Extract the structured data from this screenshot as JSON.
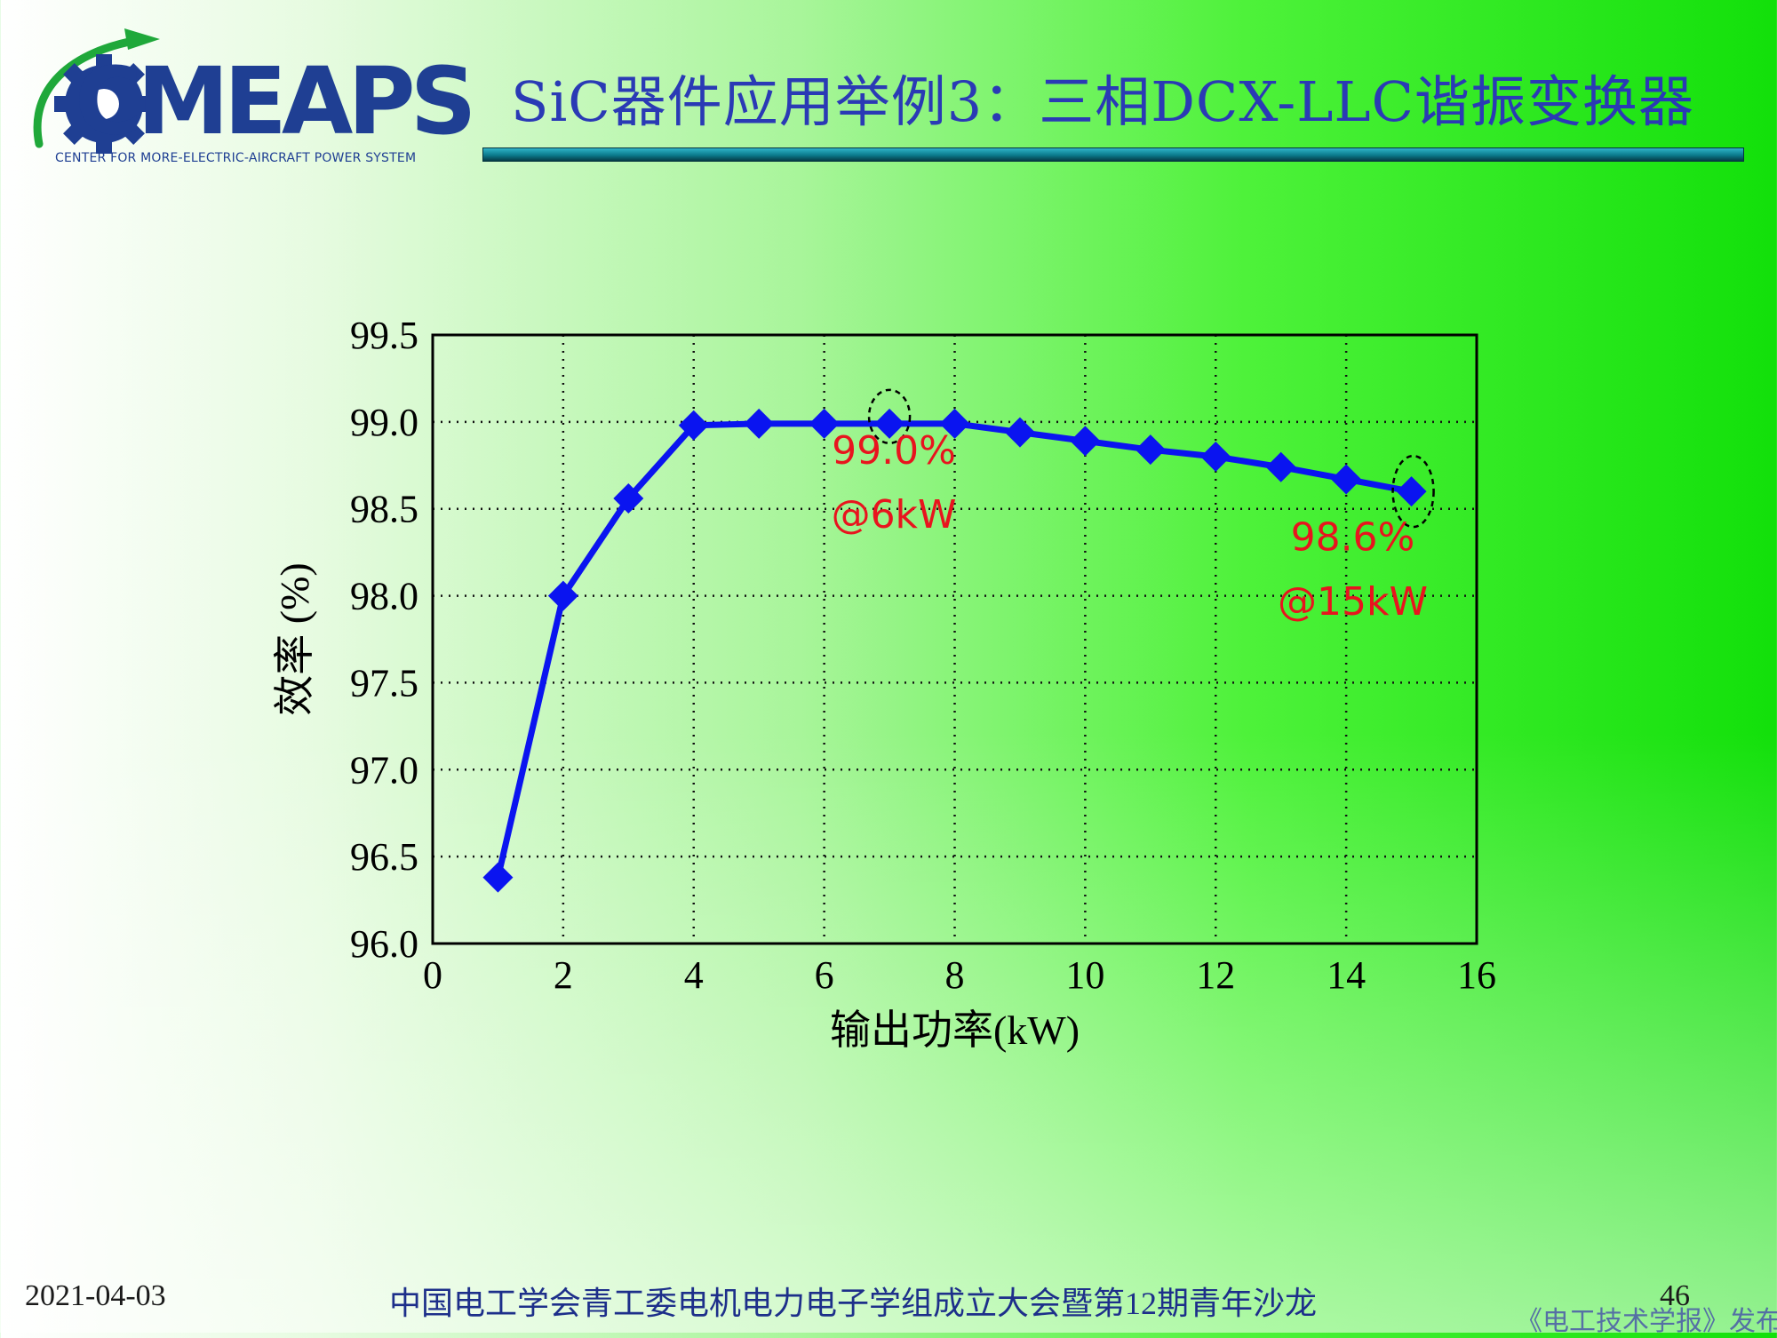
{
  "header": {
    "logo_text": "CMEAPS",
    "logo_subtitle": "CENTER FOR MORE-ELECTRIC-AIRCRAFT POWER SYSTEM",
    "title": "SiC器件应用举例3：三相DCX-LLC谐振变换器"
  },
  "colors": {
    "title": "#2a3ab5",
    "series": "#0a14f0",
    "annotation": "#e8141e",
    "logo": "#1f3f93",
    "logo_accent": "#1fa83a"
  },
  "icons": [
    "gear-icon",
    "swoosh-icon"
  ],
  "chart_data": {
    "type": "line",
    "xlabel": "输出功率(kW)",
    "ylabel": "效率 (%)",
    "xlim": [
      0,
      16
    ],
    "ylim": [
      96.0,
      99.5
    ],
    "xticks": [
      "0",
      "2",
      "4",
      "6",
      "8",
      "10",
      "12",
      "14",
      "16"
    ],
    "yticks": [
      "99.5",
      "99.0",
      "98.5",
      "98.0",
      "97.5",
      "97.0",
      "96.5",
      "96.0"
    ],
    "grid": true,
    "marker": "diamond",
    "series": [
      {
        "x": [
          1,
          2,
          3,
          4,
          5,
          6,
          7,
          8,
          9,
          10,
          11,
          12,
          13,
          14,
          15
        ],
        "y": [
          96.38,
          98.0,
          98.56,
          98.98,
          98.99,
          98.99,
          98.99,
          98.99,
          98.94,
          98.89,
          98.84,
          98.8,
          98.74,
          98.67,
          98.6
        ]
      }
    ],
    "annotations": [
      {
        "line1": "99.0%",
        "line2": "@6kW",
        "x": 7,
        "y": 98.99
      },
      {
        "line1": "98.6%",
        "line2": "@15kW",
        "x": 15,
        "y": 98.6
      }
    ]
  },
  "footer": {
    "date": "2021-04-03",
    "event": "中国电工学会青工委电机电力电子学组成立大会暨第12期青年沙龙",
    "page": "46",
    "source": "《电工技术学报》发布"
  }
}
